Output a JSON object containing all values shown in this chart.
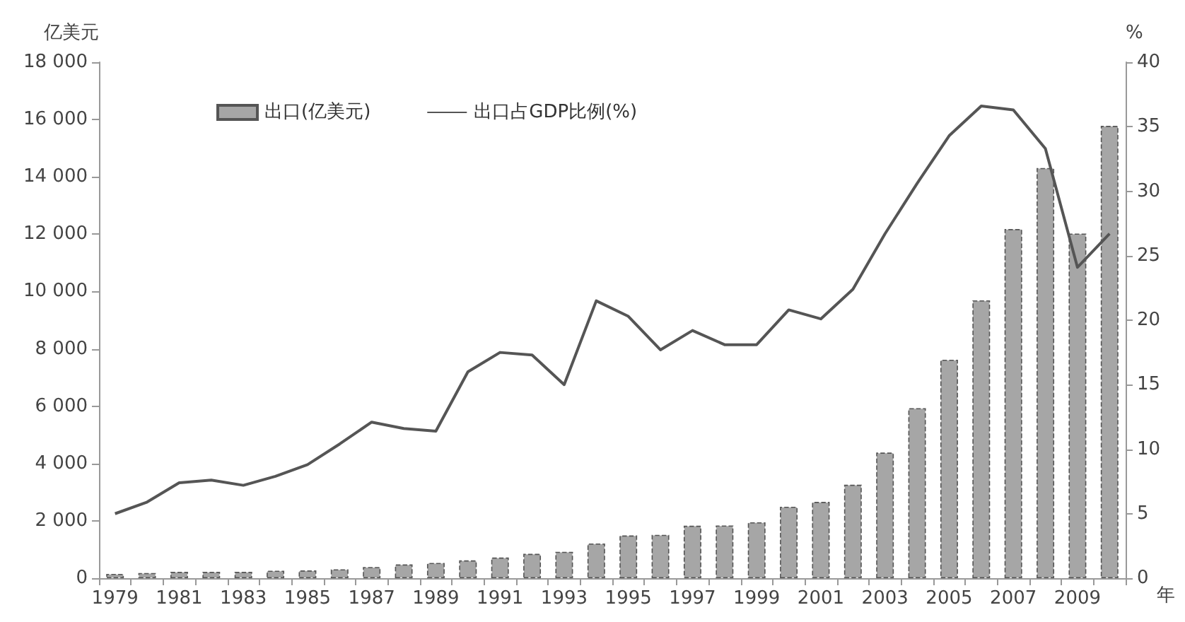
{
  "chart_data": {
    "type": "bar",
    "categories": [
      "1979",
      null,
      "1981",
      null,
      "1983",
      null,
      "1985",
      null,
      "1987",
      null,
      "1989",
      null,
      "1991",
      null,
      "1993",
      null,
      "1995",
      null,
      "1997",
      null,
      "1999",
      null,
      "2001",
      null,
      "2003",
      null,
      "2005",
      null,
      "2007",
      null,
      "2009",
      null
    ],
    "series": [
      {
        "name": "出口(亿美元)",
        "color": "#a6a6a6",
        "values": [
          150,
          180,
          220,
          220,
          220,
          260,
          270,
          310,
          390,
          480,
          530,
          620,
          720,
          850,
          920,
          1210,
          1490,
          1510,
          1830,
          1840,
          1950,
          2490,
          2660,
          3260,
          4380,
          5930,
          7620,
          9690,
          12180,
          14310,
          12020,
          15780
        ]
      },
      {
        "name": "出口占GDP比例(%)",
        "type": "line",
        "axis": "y2",
        "color": "#555555",
        "values": [
          5.0,
          5.9,
          7.4,
          7.6,
          7.2,
          7.9,
          8.8,
          10.4,
          12.1,
          11.6,
          11.4,
          16.0,
          17.5,
          17.3,
          15.0,
          21.5,
          20.3,
          17.7,
          19.2,
          18.1,
          18.1,
          20.8,
          20.1,
          22.4,
          26.7,
          30.6,
          34.3,
          36.6,
          36.3,
          33.3,
          24.1,
          26.7
        ]
      }
    ],
    "xlabel": "年",
    "ylabel": "亿美元",
    "y2label": "%",
    "ylim": [
      0,
      18000
    ],
    "yticks": [
      0,
      {
        "value": 2000,
        "label": "2 000"
      },
      {
        "value": 4000,
        "label": "4 000"
      },
      {
        "value": 6000,
        "label": "6 000"
      },
      {
        "value": 8000,
        "label": "8 000"
      },
      {
        "value": 10000,
        "label": "10 000"
      },
      {
        "value": 12000,
        "label": "12 000"
      },
      {
        "value": 14000,
        "label": "14 000"
      },
      {
        "value": 16000,
        "label": "16 000"
      },
      {
        "value": 18000,
        "label": "18 000"
      }
    ],
    "y2lim": [
      0,
      40
    ],
    "y2ticks": [
      0,
      5,
      10,
      15,
      20,
      25,
      30,
      35,
      40
    ],
    "legend": "top",
    "grid": false,
    "marker": "none",
    "line_style": "solid"
  }
}
